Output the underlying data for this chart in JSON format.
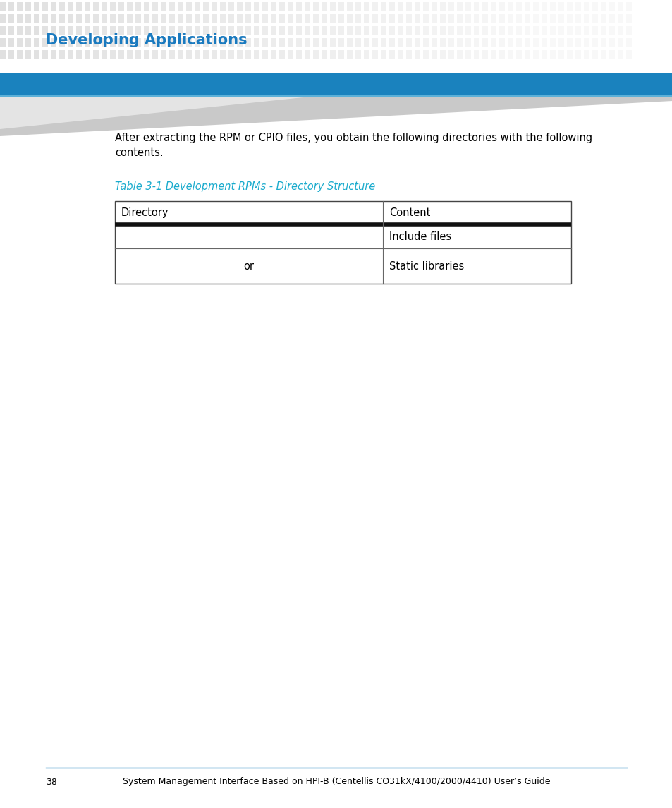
{
  "page_bg": "#ffffff",
  "header_title": "Developing Applications",
  "header_title_color": "#1a7abf",
  "header_title_fontsize": 15,
  "blue_bar_color": "#1a82be",
  "dot_color": "#d0d0d0",
  "body_text": "After extracting the RPM or CPIO files, you obtain the following directories with the following\ncontents.",
  "body_text_fontsize": 10.5,
  "table_caption": "Table 3-1 Development RPMs - Directory Structure",
  "table_caption_color": "#1aabcd",
  "table_caption_fontsize": 10.5,
  "col1_header": "Directory",
  "col2_header": "Content",
  "row1_col1": "",
  "row1_col2": "Include files",
  "row2_col1": "or",
  "row2_col2": "Static libraries",
  "table_text_fontsize": 10.5,
  "footer_line_color": "#1a82be",
  "footer_page_num": "38",
  "footer_text": "System Management Interface Based on HPI-B (Centellis CO31kX/4100/2000/4410) User’s Guide",
  "footer_fontsize": 9.0
}
